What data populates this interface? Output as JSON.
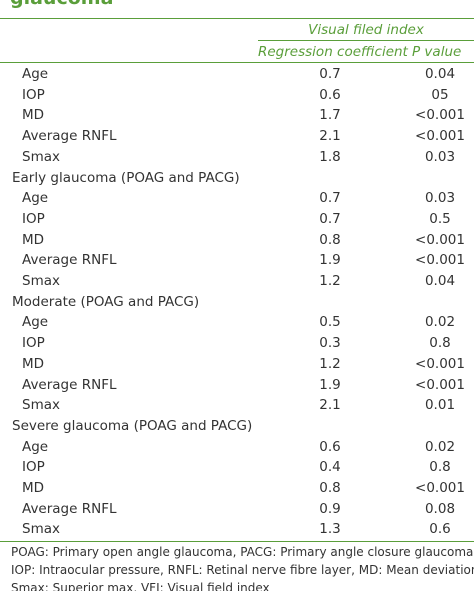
{
  "title": "glaucoma",
  "table": {
    "group_header": "Visual filed index",
    "columns": [
      "Regression coefficient",
      "P value"
    ],
    "sections": [
      {
        "rows": [
          [
            "Age",
            "0.7",
            "0.04"
          ],
          [
            "IOP",
            "0.6",
            "05"
          ],
          [
            "MD",
            "1.7",
            "<0.001"
          ],
          [
            "Average RNFL",
            "2.1",
            "<0.001"
          ],
          [
            "Smax",
            "1.8",
            "0.03"
          ]
        ]
      },
      {
        "label": "Early glaucoma (POAG and PACG)",
        "rows": [
          [
            "Age",
            "0.7",
            "0.03"
          ],
          [
            "IOP",
            "0.7",
            "0.5"
          ],
          [
            "MD",
            "0.8",
            "<0.001"
          ],
          [
            "Average RNFL",
            "1.9",
            "<0.001"
          ],
          [
            "Smax",
            "1.2",
            "0.04"
          ]
        ]
      },
      {
        "label": "Moderate (POAG and PACG)",
        "rows": [
          [
            "Age",
            "0.5",
            "0.02"
          ],
          [
            "IOP",
            "0.3",
            "0.8"
          ],
          [
            "MD",
            "1.2",
            "<0.001"
          ],
          [
            "Average RNFL",
            "1.9",
            "<0.001"
          ],
          [
            "Smax",
            "2.1",
            "0.01"
          ]
        ]
      },
      {
        "label": "Severe glaucoma (POAG and PACG)",
        "rows": [
          [
            "Age",
            "0.6",
            "0.02"
          ],
          [
            "IOP",
            "0.4",
            "0.8"
          ],
          [
            "MD",
            "0.8",
            "<0.001"
          ],
          [
            "Average RNFL",
            "0.9",
            "0.08"
          ],
          [
            "Smax",
            "1.3",
            "0.6"
          ]
        ]
      }
    ]
  },
  "footnote": [
    "POAG: Primary open angle glaucoma, PACG: Primary angle closure glaucoma,",
    "IOP: Intraocular pressure, RNFL: Retinal nerve fibre layer, MD: Mean deviation,",
    "Smax: Superior max, VFI: Visual field index"
  ]
}
